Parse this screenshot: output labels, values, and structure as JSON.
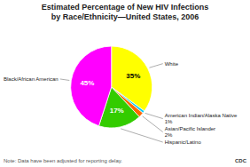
{
  "chart_data": {
    "type": "pie",
    "title": "Estimated Percentage of New HIV Infections",
    "subtitle": "by Race/Ethnicity—United States, 2006",
    "categories": [
      "White",
      "American Indian/Alaska Native",
      "Asian/Pacific Islander",
      "Hispanic/Latino",
      "Black/African American"
    ],
    "values": [
      35,
      1,
      2,
      17,
      45
    ],
    "value_labels": [
      "35%",
      "1%",
      "2%",
      "17%",
      "45%"
    ],
    "colors": [
      "#FFFF00",
      "#00CCFF",
      "#FF6600",
      "#33CC00",
      "#FF00FF"
    ],
    "data_labels": true,
    "annotations": [
      "Note: Data have been adjusted for reporting delay.",
      "CDC"
    ]
  }
}
